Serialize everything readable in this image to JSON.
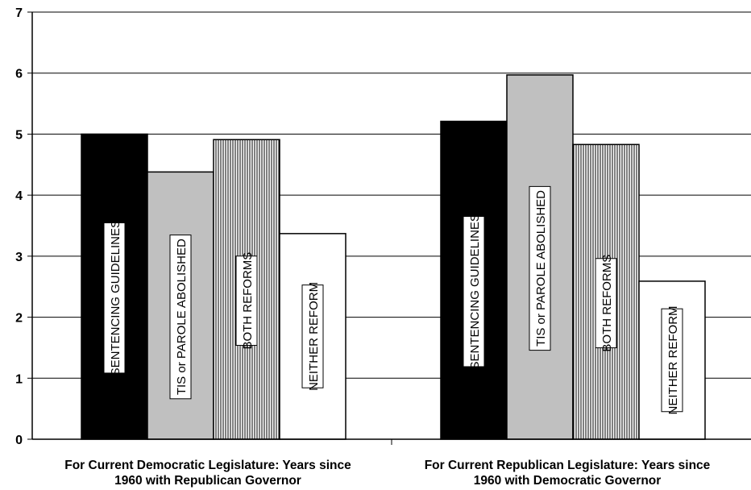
{
  "chart_data": {
    "type": "bar",
    "title": "",
    "xlabel": "",
    "ylabel": "",
    "ylim": [
      0,
      7
    ],
    "yticks": [
      0,
      1,
      2,
      3,
      4,
      5,
      6,
      7
    ],
    "grid": true,
    "legend": "none",
    "categories": [
      [
        "For Current Democratic Legislature: Years since",
        "1960 with Republican Governor"
      ],
      [
        "For Current Republican Legislature: Years since",
        "1960 with Democratic Governor"
      ]
    ],
    "series": [
      {
        "name": "SENTENCING GUIDELINES",
        "values": [
          5.0,
          5.21
        ],
        "fill": "#000000",
        "pattern": "solid"
      },
      {
        "name": "TIS or PAROLE ABOLISHED",
        "values": [
          4.38,
          5.97
        ],
        "fill": "#c0c0c0",
        "pattern": "solid"
      },
      {
        "name": "BOTH REFORMS",
        "values": [
          4.91,
          4.83
        ],
        "fill": "#ffffff",
        "pattern": "vertical-lines"
      },
      {
        "name": "NEITHER REFORM",
        "values": [
          3.37,
          2.59
        ],
        "fill": "#ffffff",
        "pattern": "solid"
      }
    ]
  }
}
